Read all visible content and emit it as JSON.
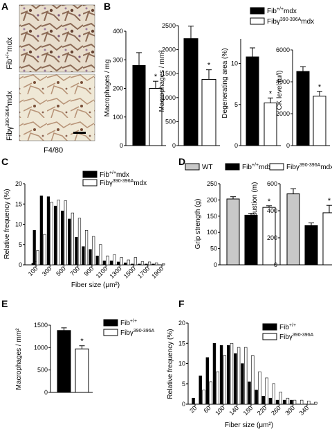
{
  "panels": {
    "A": {
      "letter": "A",
      "top_label": "Fib",
      "top_label_sup": "+/+",
      "top_label_suffix": "mdx",
      "bottom_label": "Fibγ",
      "bottom_label_sup": "390-396A",
      "bottom_label_suffix": "mdx",
      "stain": "F4/80"
    },
    "B": {
      "letter": "B"
    },
    "C": {
      "letter": "C"
    },
    "D": {
      "letter": "D"
    },
    "E": {
      "letter": "E"
    },
    "F": {
      "letter": "F"
    }
  },
  "legends": {
    "B": [
      {
        "main": "Fib",
        "sup": "+/+",
        "suffix": "mdx",
        "color": "#000000"
      },
      {
        "main": "Fibγ",
        "sup": "390-396A",
        "suffix": "mdx",
        "color": "#ffffff"
      }
    ],
    "C": [
      {
        "main": "Fib",
        "sup": "+/+",
        "suffix": "mdx",
        "color": "#000000"
      },
      {
        "main": "Fibγ",
        "sup": "390-396A",
        "suffix": "mdx",
        "color": "#ffffff"
      }
    ],
    "D": [
      {
        "main": "WT",
        "sup": "",
        "suffix": "",
        "color": "#c8c8c8"
      },
      {
        "main": "Fib",
        "sup": "+/+",
        "suffix": "mdx",
        "color": "#000000"
      },
      {
        "main": "Fibγ",
        "sup": "390-396A",
        "suffix": "mdx",
        "color": "#ffffff"
      }
    ],
    "E": [
      {
        "main": "Fib",
        "sup": "+/+",
        "suffix": "",
        "color": "#000000"
      },
      {
        "main": "Fibγ",
        "sup": "390-396A",
        "suffix": "",
        "color": "#ffffff"
      }
    ],
    "F": [
      {
        "main": "Fib",
        "sup": "+/+",
        "suffix": "",
        "color": "#000000"
      },
      {
        "main": "Fibγ",
        "sup": "390-396A",
        "suffix": "",
        "color": "#ffffff"
      }
    ]
  },
  "chart_data": [
    {
      "id": "B1",
      "type": "bar",
      "ylabel": "Macrophages / mg",
      "ylim": [
        0,
        400
      ],
      "yticks": [
        0,
        100,
        200,
        300,
        400
      ],
      "values": [
        280,
        200
      ],
      "errors": [
        45,
        25
      ],
      "colors": [
        "#000000",
        "#ffffff"
      ],
      "sig": [
        false,
        true
      ]
    },
    {
      "id": "B2",
      "type": "bar",
      "ylabel": "Macrophages / mm²",
      "ylim": [
        0,
        2500
      ],
      "yticks": [
        0,
        500,
        1000,
        1500,
        2000,
        2500
      ],
      "values": [
        2230,
        1380
      ],
      "errors": [
        260,
        200
      ],
      "colors": [
        "#000000",
        "#ffffff"
      ],
      "sig": [
        false,
        true
      ]
    },
    {
      "id": "B3",
      "type": "bar",
      "ylabel": "Degenerating area (%)",
      "ylim": [
        0,
        13
      ],
      "yticks": [
        0,
        5,
        10
      ],
      "values": [
        10.8,
        5.2
      ],
      "errors": [
        1.1,
        0.6
      ],
      "colors": [
        "#000000",
        "#ffffff"
      ],
      "sig": [
        false,
        true
      ]
    },
    {
      "id": "B4",
      "type": "bar",
      "ylabel": "CK level (u/l)",
      "ylim": [
        0,
        6000
      ],
      "yticks": [
        0,
        2000,
        4000,
        6000
      ],
      "values": [
        4650,
        3100
      ],
      "errors": [
        300,
        300
      ],
      "colors": [
        "#000000",
        "#ffffff"
      ],
      "sig": [
        false,
        true
      ]
    },
    {
      "id": "C",
      "type": "bar",
      "ylabel": "Relative frequency (%)",
      "xlabel": "Fiber size (μm²)",
      "ylim": [
        0,
        20
      ],
      "yticks": [
        0,
        5,
        10,
        15,
        20
      ],
      "x": [
        100,
        200,
        300,
        400,
        500,
        600,
        700,
        800,
        900,
        1000,
        1100,
        1200,
        1300,
        1400,
        1500,
        1600,
        1700,
        1800,
        1900
      ],
      "xticks": [
        100,
        300,
        500,
        700,
        900,
        1100,
        1300,
        1500,
        1700,
        1900
      ],
      "lead": {
        "black": 0.4,
        "white": 0.8
      },
      "series": [
        {
          "color": "#000000",
          "values": [
            8.5,
            17.0,
            16.8,
            14.5,
            13.3,
            11.3,
            6.8,
            4.5,
            3.8,
            2.2,
            1.0,
            1.0,
            0.7,
            0.5,
            0.2,
            0.2,
            0.2,
            0.2,
            0.0
          ]
        },
        {
          "color": "#ffffff",
          "values": [
            3.5,
            7.5,
            15.5,
            16.0,
            15.8,
            12.8,
            11.5,
            8.5,
            7.0,
            5.0,
            2.2,
            2.5,
            1.8,
            1.2,
            1.8,
            0.8,
            0.7,
            0.5,
            0.3
          ]
        }
      ]
    },
    {
      "id": "D1",
      "type": "bar",
      "ylabel": "Grip strength (g)",
      "ylim": [
        0,
        250
      ],
      "yticks": [
        0,
        50,
        100,
        150,
        200,
        250
      ],
      "values": [
        203,
        153,
        177
      ],
      "errors": [
        7,
        6,
        5
      ],
      "colors": [
        "#c8c8c8",
        "#000000",
        "#ffffff"
      ],
      "sig": [
        false,
        false,
        true
      ]
    },
    {
      "id": "D2",
      "type": "bar",
      "ylabel": "Distance to exhaustion (m)",
      "ylim": [
        0,
        600
      ],
      "yticks": [
        0,
        200,
        400,
        600
      ],
      "values": [
        525,
        290,
        385
      ],
      "errors": [
        38,
        20,
        55
      ],
      "colors": [
        "#c8c8c8",
        "#000000",
        "#ffffff"
      ],
      "sig": [
        false,
        false,
        true
      ]
    },
    {
      "id": "E",
      "type": "bar",
      "ylabel": "Macrophages / mm²",
      "ylim": [
        0,
        1500
      ],
      "yticks": [
        0,
        500,
        1000,
        1500
      ],
      "values": [
        1380,
        970
      ],
      "errors": [
        60,
        70
      ],
      "colors": [
        "#000000",
        "#ffffff"
      ],
      "sig": [
        false,
        true
      ]
    },
    {
      "id": "F",
      "type": "bar",
      "ylabel": "Relative frequency (%)",
      "xlabel": "Fiber size (μm²)",
      "ylim": [
        0,
        20
      ],
      "yticks": [
        0,
        5,
        10,
        15,
        20
      ],
      "x": [
        20,
        40,
        60,
        80,
        100,
        120,
        140,
        160,
        180,
        200,
        220,
        240,
        260,
        280,
        300,
        320,
        340,
        360
      ],
      "xticks": [
        20,
        60,
        100,
        140,
        180,
        220,
        260,
        300,
        340
      ],
      "series": [
        {
          "color": "#000000",
          "values": [
            1.5,
            7.0,
            11.5,
            15.0,
            14.5,
            14.5,
            12.5,
            10.0,
            5.5,
            3.5,
            2.0,
            1.5,
            1.0,
            1.0,
            1.0,
            0.0,
            0.0,
            0.0
          ]
        },
        {
          "color": "#ffffff",
          "values": [
            0.0,
            3.5,
            5.5,
            8.0,
            12.0,
            15.0,
            14.0,
            14.0,
            12.0,
            8.0,
            6.5,
            5.0,
            3.0,
            1.5,
            1.0,
            1.0,
            0.8,
            0.5
          ]
        }
      ]
    }
  ]
}
